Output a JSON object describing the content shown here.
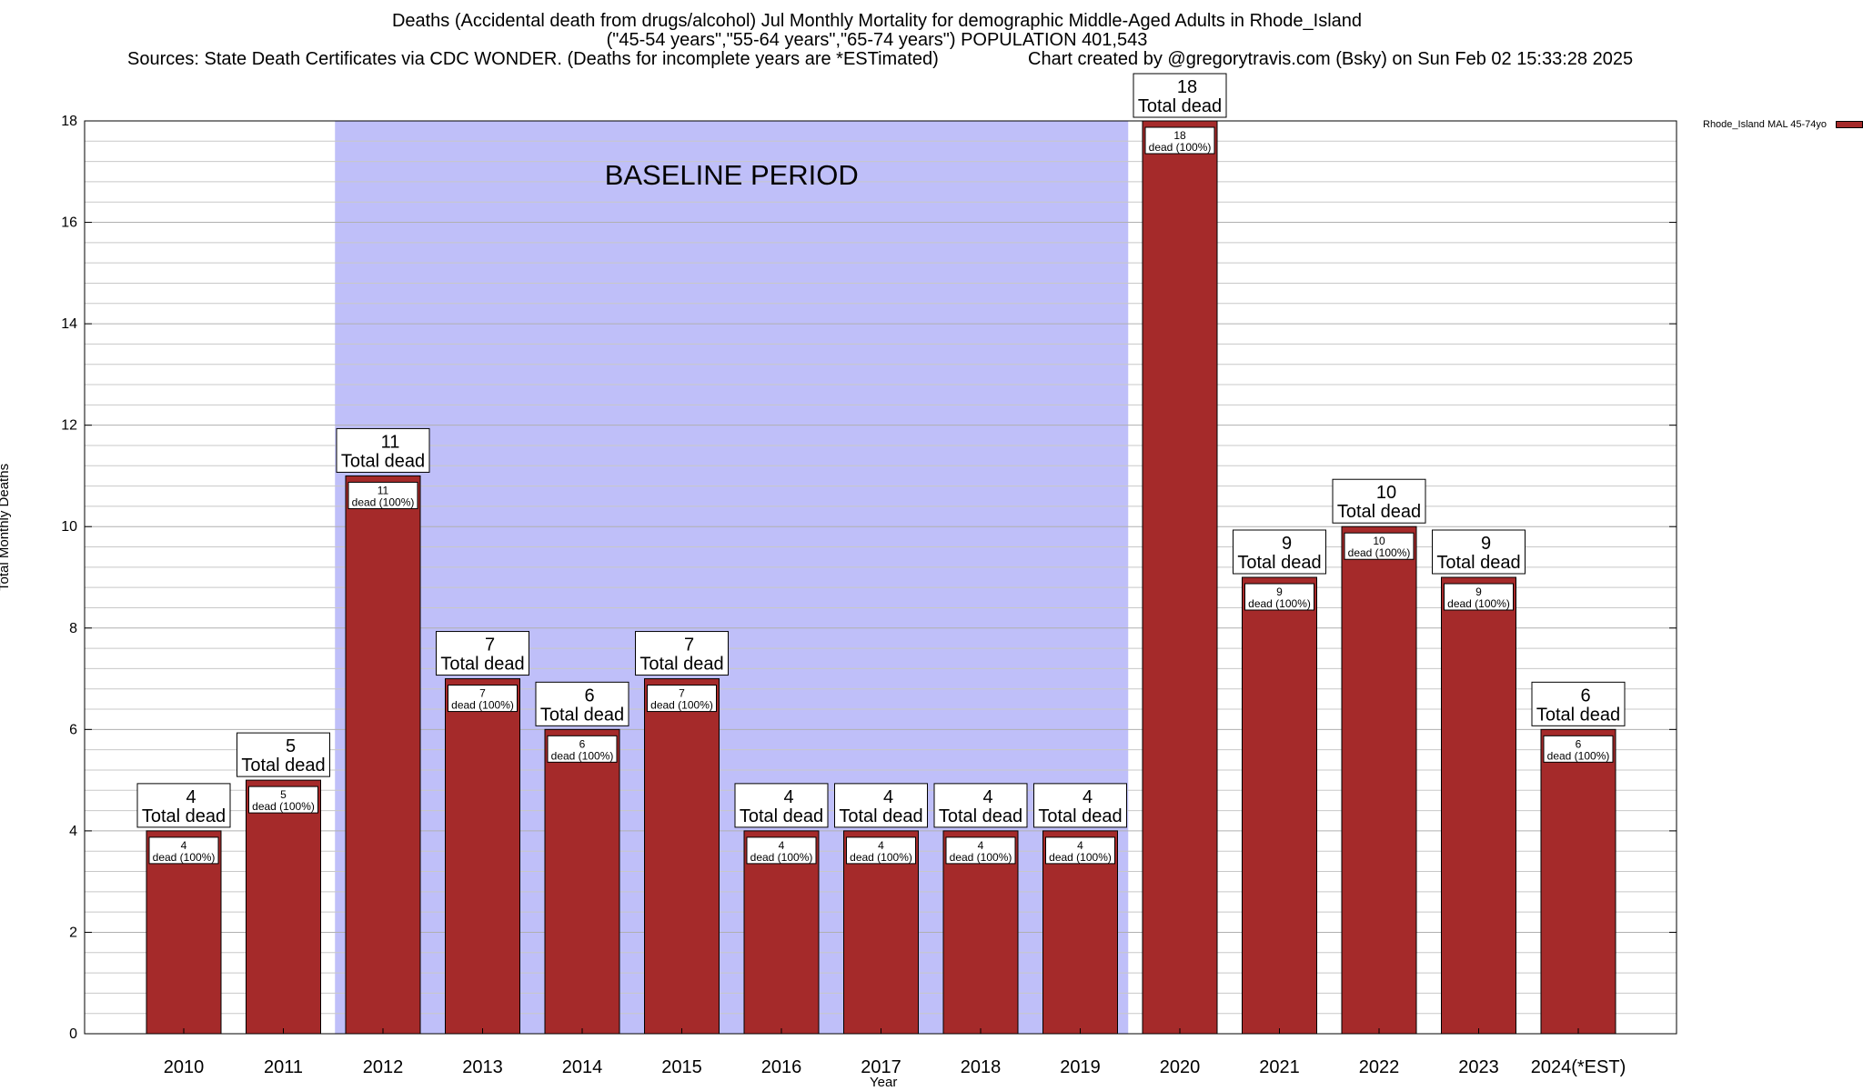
{
  "header": {
    "title_line1": "Deaths (Accidental death from drugs/alcohol) Jul Monthly Mortality for demographic Middle-Aged Adults in Rhode_Island",
    "title_line2": "(\"45-54 years\",\"55-64 years\",\"65-74 years\") POPULATION 401,543",
    "sources": "Sources: State Death Certificates via CDC WONDER. (Deaths for incomplete years are *ESTimated)",
    "credit": "Chart created by @gregorytravis.com (Bsky) on Sun Feb 02 15:33:28 2025"
  },
  "chart_data": {
    "type": "bar",
    "ylabel": "Total Monthly Deaths",
    "xlabel": "Year",
    "ylim": [
      0,
      18
    ],
    "yticks": [
      0,
      2,
      4,
      6,
      8,
      10,
      12,
      14,
      16,
      18
    ],
    "categories": [
      "2010",
      "2011",
      "2012",
      "2013",
      "2014",
      "2015",
      "2016",
      "2017",
      "2018",
      "2019",
      "2020",
      "2021",
      "2022",
      "2023",
      "2024(*EST)"
    ],
    "series": [
      {
        "name": "Rhode_Island MAL 45-74yo",
        "values": [
          4,
          5,
          11,
          7,
          6,
          7,
          4,
          4,
          4,
          4,
          18,
          9,
          10,
          9,
          6
        ]
      }
    ],
    "total_label": "Total dead",
    "inner_label": "dead (100%)",
    "baseline": {
      "label": "BASELINE PERIOD",
      "from": "2012",
      "to": "2019"
    },
    "grid": true,
    "legend_position": "top-right-outside",
    "colors": {
      "bar": "#a52a2a",
      "baseline": "#bfbff9"
    }
  }
}
